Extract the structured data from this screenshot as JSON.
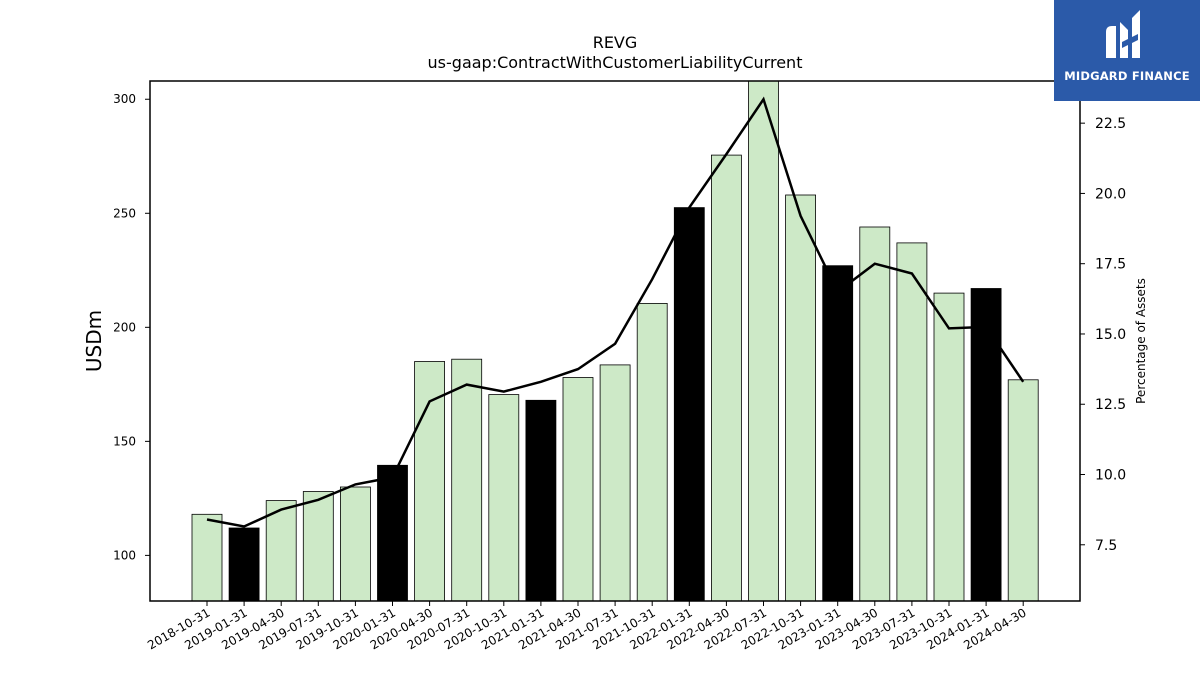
{
  "chart_data": {
    "type": "bar",
    "title": "REVG",
    "subtitle": "us-gaap:ContractWithCustomerLiabilityCurrent",
    "ylabel": "USDm",
    "y2label": "Percentage of Assets",
    "ylim": [
      80,
      308
    ],
    "y2lim": [
      5.5,
      24.0
    ],
    "yticks": [
      100,
      150,
      200,
      250,
      300
    ],
    "y2ticks": [
      7.5,
      10.0,
      12.5,
      15.0,
      17.5,
      20.0,
      22.5
    ],
    "y2tick_labels": [
      "7.5",
      "10.0",
      "12.5",
      "15.0",
      "17.5",
      "20.0",
      "22.5"
    ],
    "categories": [
      "2018-10-31",
      "2019-01-31",
      "2019-04-30",
      "2019-07-31",
      "2019-10-31",
      "2020-01-31",
      "2020-04-30",
      "2020-07-31",
      "2020-10-31",
      "2021-01-31",
      "2021-04-30",
      "2021-07-31",
      "2021-10-31",
      "2022-01-31",
      "2022-04-30",
      "2022-07-31",
      "2022-10-31",
      "2023-01-31",
      "2023-04-30",
      "2023-07-31",
      "2023-10-31",
      "2024-01-31",
      "2024-04-30"
    ],
    "values": [
      118,
      112,
      124,
      128,
      130,
      139.5,
      185,
      186,
      170.5,
      168,
      178,
      183.5,
      210.5,
      252.5,
      275.5,
      311,
      258,
      227,
      244,
      237,
      215,
      217,
      177
    ],
    "highlight": [
      false,
      true,
      false,
      false,
      false,
      true,
      false,
      false,
      false,
      true,
      false,
      false,
      false,
      true,
      false,
      false,
      false,
      true,
      false,
      false,
      false,
      true,
      false
    ],
    "pct_assets": [
      8.4,
      8.15,
      8.75,
      9.1,
      9.65,
      9.9,
      12.6,
      13.2,
      12.95,
      13.3,
      13.75,
      14.65,
      16.95,
      19.5,
      21.4,
      23.35,
      19.2,
      16.5,
      17.5,
      17.15,
      15.2,
      15.25,
      13.3
    ],
    "colors": {
      "bar": "#cde9c7",
      "highlight": "#000000",
      "line": "#000000",
      "edge": "#000000"
    }
  },
  "logo": {
    "text": "MIDGARD FINANCE",
    "bg": "#2b5aa9"
  }
}
